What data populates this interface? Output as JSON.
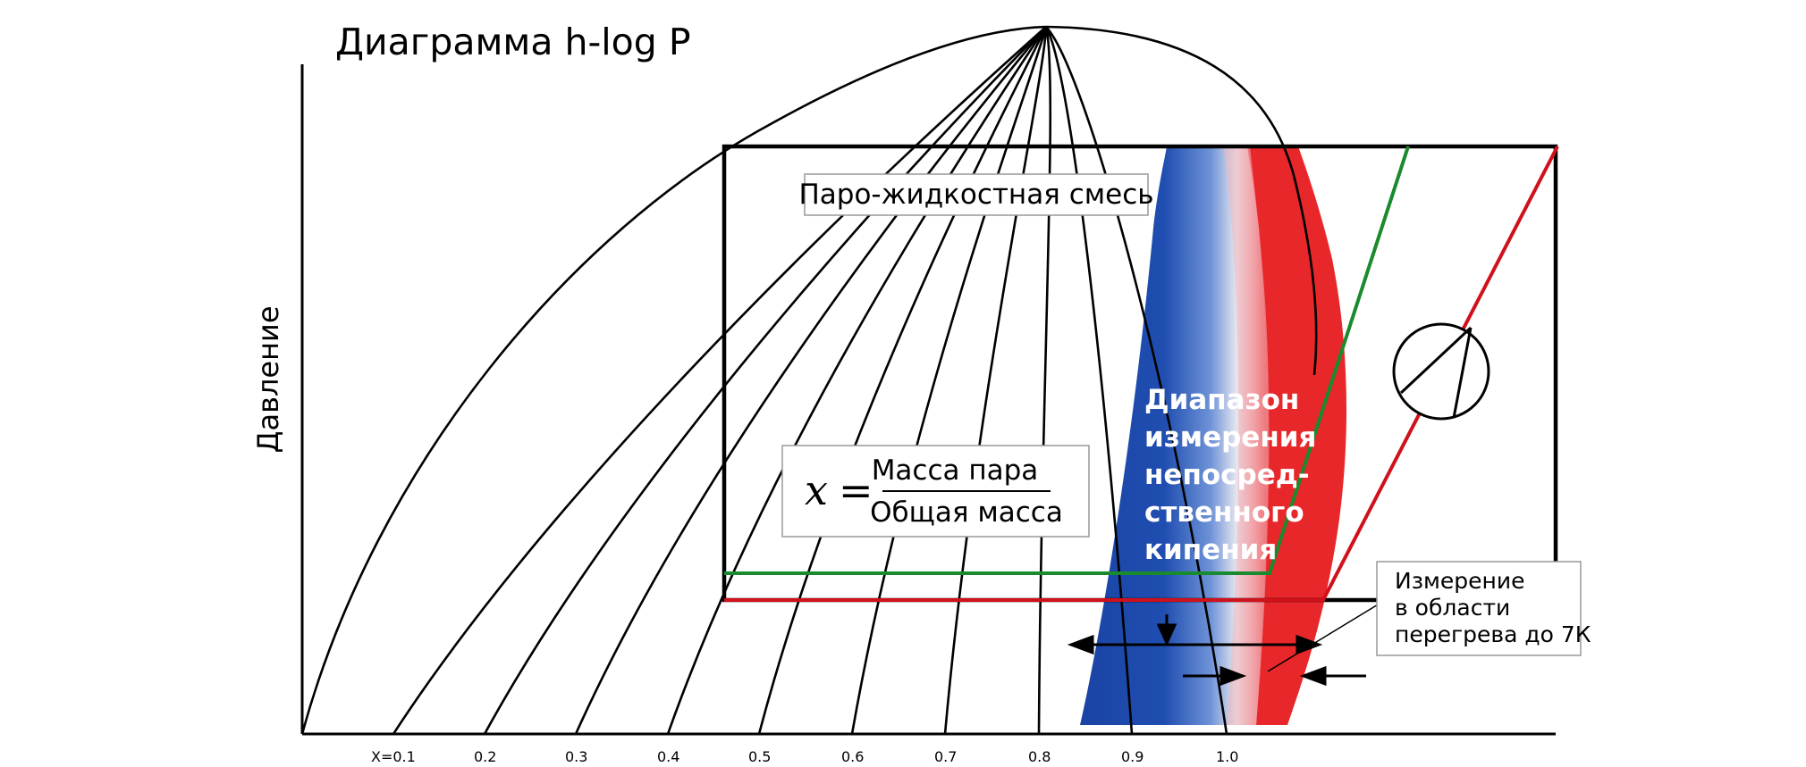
{
  "diagram": {
    "title": "Диаграмма h-log P",
    "y_axis_label": "Давление",
    "mixture_label": "Паро-жидкостная смесь",
    "formula": {
      "variable": "x",
      "equals": "=",
      "numerator": "Масса пара",
      "denominator": "Общая масса"
    },
    "range_label_lines": [
      "Диапазон",
      "измерения",
      "непосред-",
      "ственного",
      "кипения"
    ],
    "callout_lines": [
      "Измерение",
      "в области",
      "перегрева до 7К"
    ],
    "quality_ticks": [
      "X=0.1",
      "0.2",
      "0.3",
      "0.4",
      "0.5",
      "0.6",
      "0.7",
      "0.8",
      "0.9",
      "1.0"
    ],
    "colors": {
      "outline": "#000000",
      "boiling_range": "#1f49a8",
      "superheat": "#e8272a",
      "cycle_green": "#1a8a2e",
      "cycle_red": "#d0111b"
    }
  }
}
